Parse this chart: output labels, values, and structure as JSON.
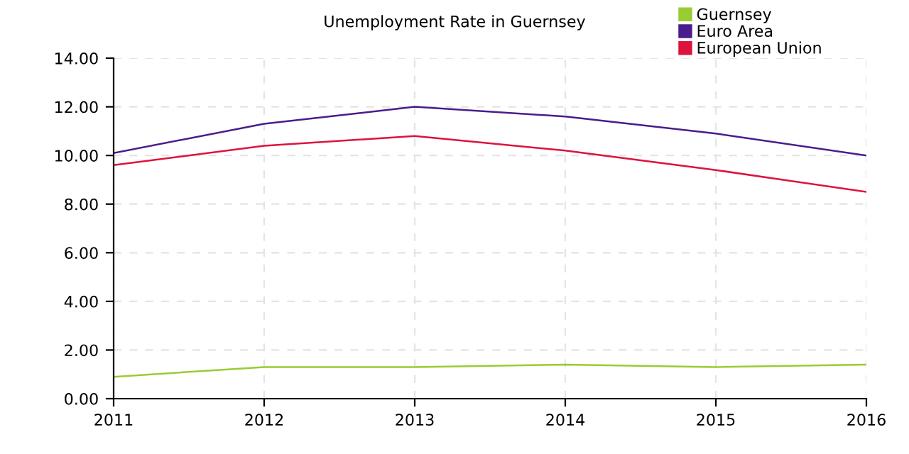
{
  "chart_data": {
    "type": "line",
    "title": "Unemployment Rate in Guernsey",
    "x": [
      2011,
      2012,
      2013,
      2014,
      2015,
      2016
    ],
    "series": [
      {
        "name": "Guernsey",
        "color": "#99cc33",
        "values": [
          0.9,
          1.3,
          1.3,
          1.4,
          1.3,
          1.4
        ]
      },
      {
        "name": "Euro Area",
        "color": "#4b1c8c",
        "values": [
          10.1,
          11.3,
          12.0,
          11.6,
          10.9,
          10.0
        ]
      },
      {
        "name": "European Union",
        "color": "#dc143c",
        "values": [
          9.6,
          10.4,
          10.8,
          10.2,
          9.4,
          8.5
        ]
      }
    ],
    "xlim": [
      2011,
      2016
    ],
    "xticks": [
      2011,
      2012,
      2013,
      2014,
      2015,
      2016
    ],
    "ylim": [
      0,
      14
    ],
    "yticks": [
      {
        "value": 0,
        "label": "0.00"
      },
      {
        "value": 2,
        "label": "2.00"
      },
      {
        "value": 4,
        "label": "4.00"
      },
      {
        "value": 6,
        "label": "6.00"
      },
      {
        "value": 8,
        "label": "8.00"
      },
      {
        "value": 10,
        "label": "10.00"
      },
      {
        "value": 12,
        "label": "12.00"
      },
      {
        "value": 14,
        "label": "14.00"
      }
    ],
    "grid": true,
    "legend": "top right",
    "marker": "none",
    "line_style": "solid"
  }
}
